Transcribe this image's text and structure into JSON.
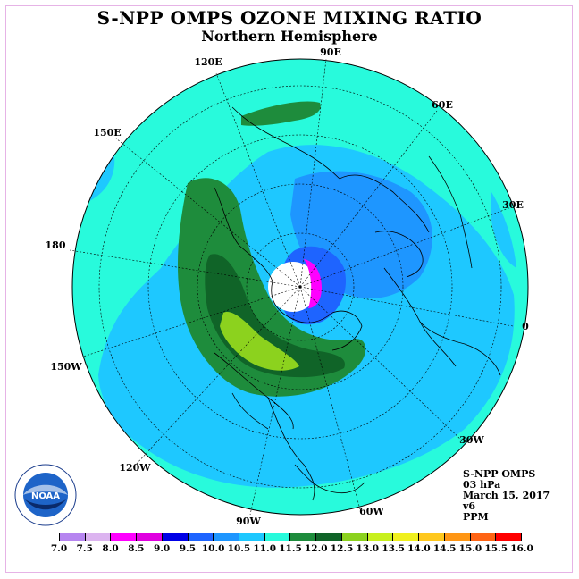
{
  "title": "S-NPP OMPS OZONE MIXING RATIO",
  "subtitle": "Northern Hemisphere",
  "longitude_labels": [
    "90E",
    "60E",
    "30E",
    "0",
    "30W",
    "60W",
    "90W",
    "120W",
    "150W",
    "180",
    "150E",
    "120E"
  ],
  "info": {
    "instrument": "S-NPP OMPS",
    "level": "03 hPa",
    "date": "March 15, 2017",
    "version": "v6",
    "units": "PPM"
  },
  "colorbar": {
    "labels": [
      "7.0",
      "7.5",
      "8.0",
      "8.5",
      "9.0",
      "9.5",
      "10.0",
      "10.5",
      "11.0",
      "11.5",
      "12.0",
      "12.5",
      "13.0",
      "13.5",
      "14.0",
      "14.5",
      "15.0",
      "15.5",
      "16.0"
    ],
    "colors": [
      "#b685f0",
      "#dcb4f0",
      "#ff00ff",
      "#e000e0",
      "#0000e6",
      "#1e64ff",
      "#1e96ff",
      "#1ec8ff",
      "#28fadc",
      "#1e8c3c",
      "#106428",
      "#8cd21e",
      "#c8f01e",
      "#f0f01e",
      "#ffc81e",
      "#ff9614",
      "#ff6414",
      "#ff0000",
      "#8c5a3c"
    ]
  },
  "logo": {
    "text": "NOAA"
  },
  "colors": {
    "background_fill": "#28fadc",
    "pole_hole": "#ffffff"
  }
}
